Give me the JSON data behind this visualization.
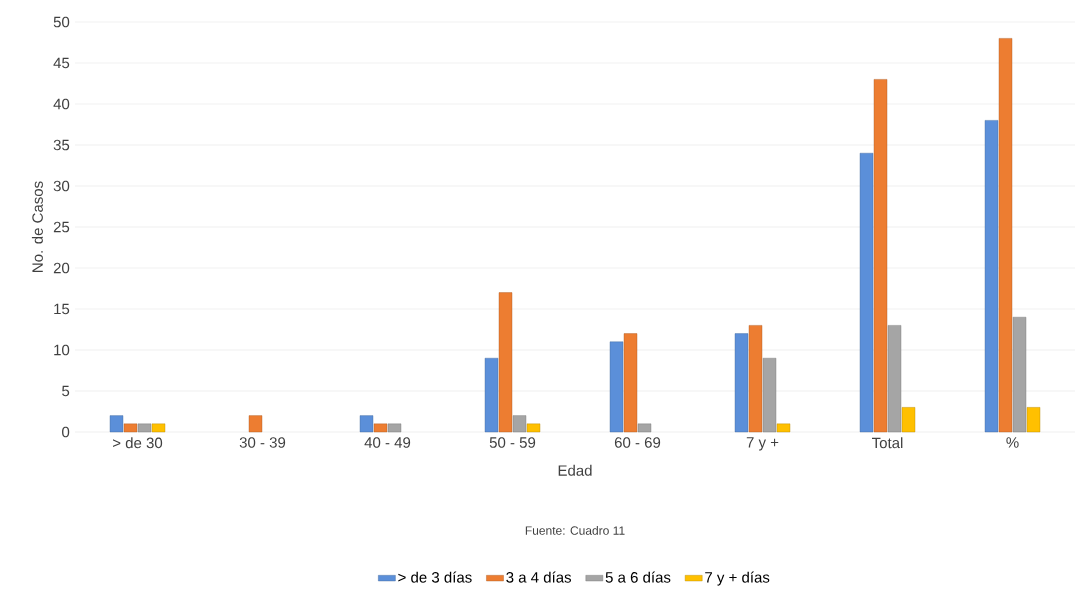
{
  "chart_data": {
    "type": "bar",
    "xlabel": "Edad",
    "ylabel": "No. de Casos",
    "annotations": [
      "Fuente: Cuadro 11"
    ],
    "categories": [
      "> de 30",
      "30  -  39",
      "40  -  49",
      "50  -  59",
      "60  -  69",
      "7 y +",
      "Total",
      "%"
    ],
    "series": [
      {
        "name": "> de 3 días",
        "color": "#5b8fd9",
        "values": [
          2,
          null,
          2,
          9,
          11,
          12,
          34,
          38
        ]
      },
      {
        "name": "3  a 4 días",
        "color": "#ed7d31",
        "values": [
          1,
          2,
          1,
          17,
          12,
          13,
          43,
          48
        ]
      },
      {
        "name": "5 a 6 días",
        "color": "#a5a5a5",
        "values": [
          1,
          null,
          1,
          2,
          1,
          9,
          13,
          14
        ]
      },
      {
        "name": "7 y + días",
        "color": "#ffc000",
        "values": [
          1,
          null,
          null,
          1,
          null,
          1,
          3,
          3
        ]
      }
    ],
    "ylim": [
      0,
      50
    ],
    "yticks": [
      0,
      5,
      10,
      15,
      20,
      25,
      30,
      35,
      40,
      45,
      50
    ],
    "grid": "y",
    "legend": "bottom"
  }
}
